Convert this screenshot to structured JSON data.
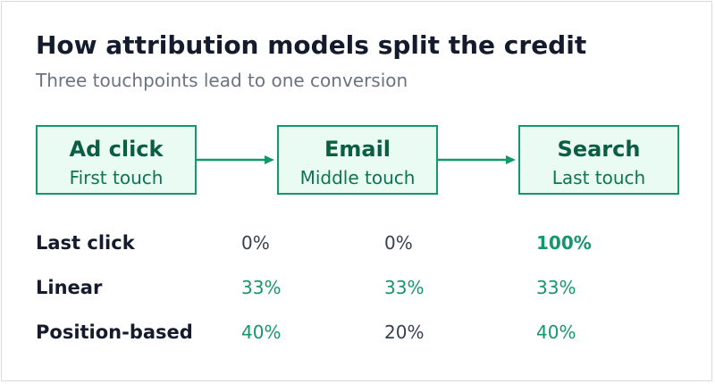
{
  "title": "How attribution models split the credit",
  "subtitle": "Three touchpoints lead to one conversion",
  "touchpoints": [
    {
      "name": "Ad click",
      "role": "First touch"
    },
    {
      "name": "Email",
      "role": "Middle touch"
    },
    {
      "name": "Search",
      "role": "Last touch"
    }
  ],
  "models": [
    {
      "name": "Last click",
      "credits": [
        "0%",
        "0%",
        "100%"
      ]
    },
    {
      "name": "Linear",
      "credits": [
        "33%",
        "33%",
        "33%"
      ]
    },
    {
      "name": "Position-based",
      "credits": [
        "40%",
        "20%",
        "40%"
      ]
    }
  ],
  "colors": {
    "accent": "#14976a",
    "box_fill": "#eafbf3",
    "heading": "#141b2d",
    "muted": "#6b7280",
    "neutral_value": "#374151"
  }
}
